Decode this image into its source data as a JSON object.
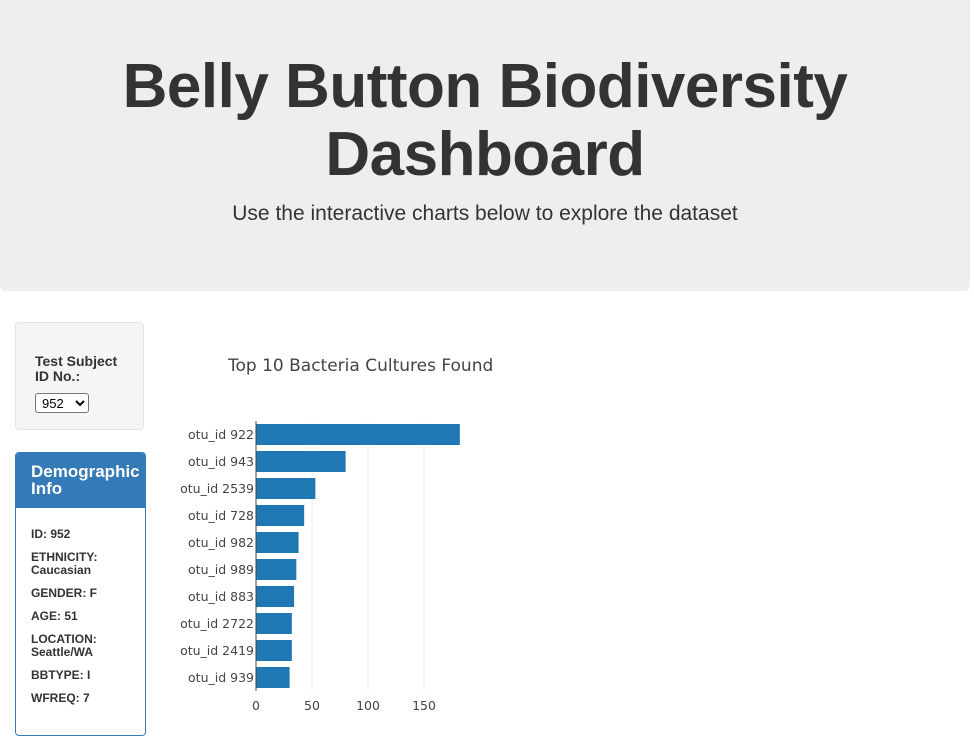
{
  "header": {
    "title": "Belly Button Biodiversity Dashboard",
    "subtitle": "Use the interactive charts below to explore the dataset"
  },
  "selector": {
    "label": "Test Subject ID No.:",
    "selected": "952"
  },
  "demographic": {
    "heading": "Demographic Info",
    "rows": [
      "ID: 952",
      "ETHNICITY: Caucasian",
      "GENDER: F",
      "AGE: 51",
      "LOCATION: Seattle/WA",
      "BBTYPE: I",
      "WFREQ: 7"
    ]
  },
  "colors": {
    "bar": "#1f77b4",
    "panel": "#337ab7"
  },
  "chart_data": {
    "type": "bar",
    "orientation": "horizontal",
    "title": "Top 10 Bacteria Cultures Found",
    "categories": [
      "otu_id 922",
      "otu_id 943",
      "otu_id 2539",
      "otu_id 728",
      "otu_id 982",
      "otu_id 989",
      "otu_id 883",
      "otu_id 2722",
      "otu_id 2419",
      "otu_id 939"
    ],
    "values": [
      182,
      80,
      53,
      43,
      38,
      36,
      34,
      32,
      32,
      30
    ],
    "xticks": [
      0,
      50,
      100,
      150
    ],
    "xlim": [
      0,
      191
    ],
    "grid": true
  }
}
